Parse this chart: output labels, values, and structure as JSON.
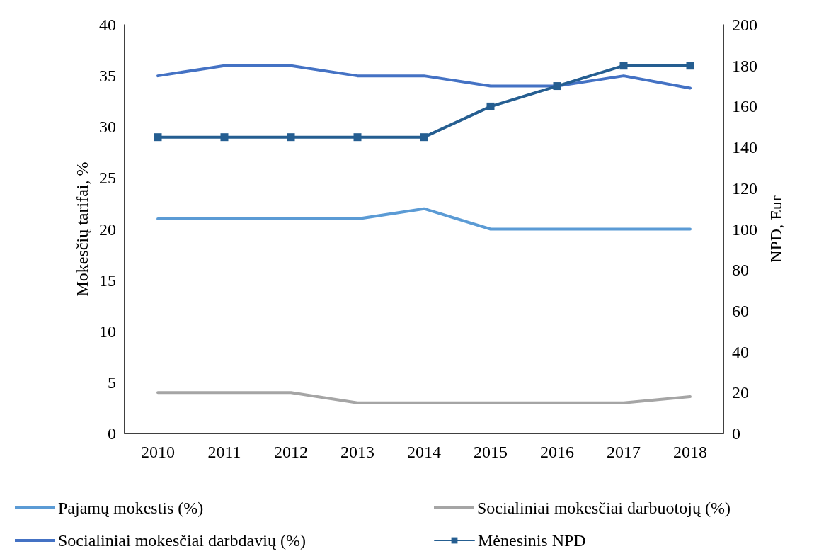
{
  "chart_data": {
    "type": "line",
    "categories": [
      "2010",
      "2011",
      "2012",
      "2013",
      "2014",
      "2015",
      "2016",
      "2017",
      "2018"
    ],
    "ylabel": "Mokesčių tarifai, %",
    "y2label": "NPD, Eur",
    "ylim": [
      0,
      40
    ],
    "yticks": [
      0,
      5,
      10,
      15,
      20,
      25,
      30,
      35,
      40
    ],
    "y2lim": [
      0,
      200
    ],
    "y2ticks": [
      0,
      20,
      40,
      60,
      80,
      100,
      120,
      140,
      160,
      180,
      200
    ],
    "grid": false,
    "legend": "bottom",
    "marker": "none",
    "line_style": "solid",
    "series": [
      {
        "name": "Pajamų mokestis (%)",
        "color": "#5b9bd5",
        "values": [
          21,
          21,
          21,
          21,
          22,
          20,
          20,
          20,
          20
        ]
      },
      {
        "name": "Socialiniai mokesčiai darbuotojų (%)",
        "color": "#a5a5a5",
        "values": [
          4,
          4,
          4,
          3,
          3,
          3,
          3,
          3,
          3.6
        ]
      },
      {
        "name": "Socialiniai mokesčiai darbdavių (%)",
        "color": "#4472c4",
        "values": [
          35,
          36,
          36,
          35,
          35,
          34,
          34,
          35,
          33.8
        ]
      },
      {
        "name": "Mėnesinis NPD",
        "color": "#255e91",
        "axis": "y2",
        "marker": "square",
        "values": [
          145,
          145,
          145,
          145,
          145,
          160,
          170,
          180,
          180
        ]
      }
    ]
  }
}
